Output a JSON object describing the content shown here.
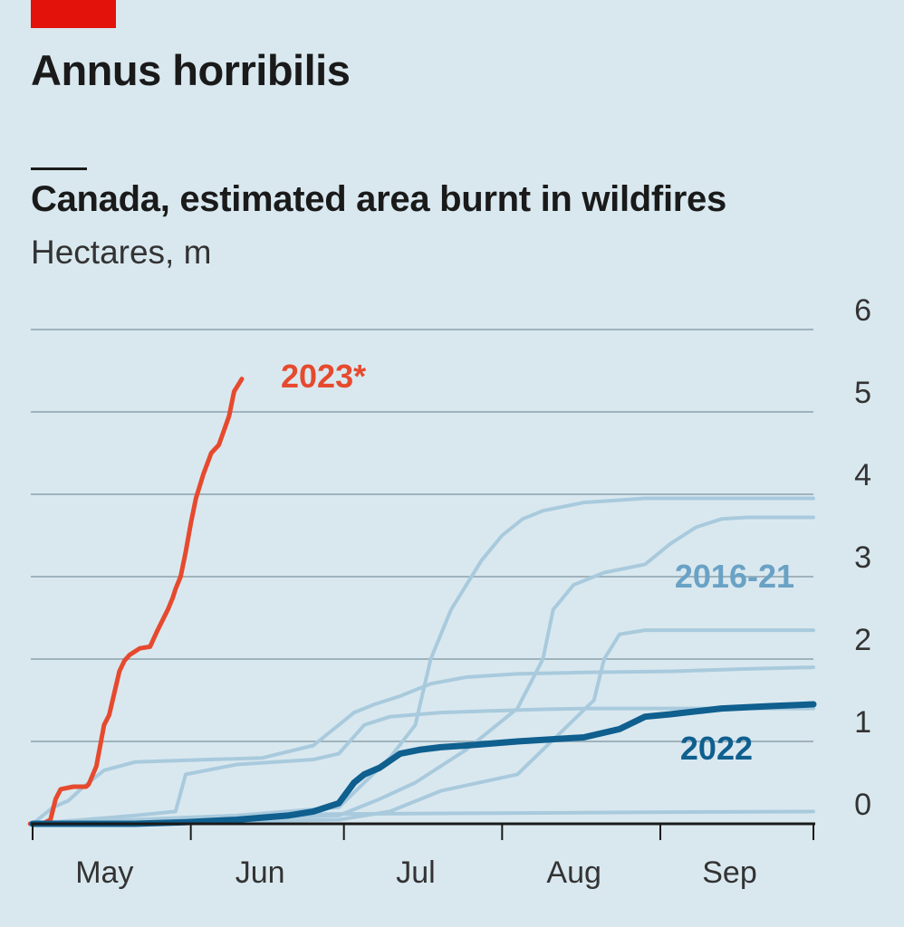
{
  "header": {
    "title": "Annus horribilis",
    "subtitle": "Canada, estimated area burnt in wildfires",
    "units": "Hectares, m"
  },
  "chart_data": {
    "type": "line",
    "title": "Canada, estimated area burnt in wildfires",
    "ylabel": "Hectares, m",
    "ylim": [
      0,
      6
    ],
    "yticks": [
      0,
      1,
      2,
      3,
      4,
      5,
      6
    ],
    "xlim": [
      0,
      153
    ],
    "months": [
      {
        "label": "May",
        "start": 0,
        "end": 31
      },
      {
        "label": "Jun",
        "start": 31,
        "end": 61
      },
      {
        "label": "Jul",
        "start": 61,
        "end": 92
      },
      {
        "label": "Aug",
        "start": 92,
        "end": 123
      },
      {
        "label": "Sep",
        "start": 123,
        "end": 153
      }
    ],
    "x_unit": "days since 1 May",
    "grid": true,
    "colors": {
      "y2023": "#e64a2e",
      "y2022": "#0f5f8f",
      "history": "#a9cadd",
      "history_label": "#6aa2c5"
    },
    "series": [
      {
        "name": "2023*",
        "color": "#e64a2e",
        "width": 5,
        "x": [
          -0.5,
          2.0,
          3.5,
          4.5,
          5.5,
          8.0,
          10.5,
          11.0,
          12.5,
          14.0,
          15.0,
          17.0,
          18.0,
          19.0,
          21.0,
          23.0,
          24.5,
          26.5,
          27.5,
          28.0,
          29.0,
          30.0,
          31.0,
          32.0,
          33.5,
          35.0,
          36.5,
          38.5,
          39.5,
          40.5,
          41.0
        ],
        "y": [
          0,
          0,
          0.05,
          0.3,
          0.42,
          0.45,
          0.45,
          0.48,
          0.7,
          1.2,
          1.32,
          1.85,
          1.98,
          2.05,
          2.13,
          2.15,
          2.35,
          2.6,
          2.75,
          2.85,
          3.0,
          3.3,
          3.65,
          3.95,
          4.25,
          4.5,
          4.6,
          4.95,
          5.25,
          5.35,
          5.4
        ]
      },
      {
        "name": "2016-21",
        "color": "#a9cadd",
        "width": 4,
        "x": [
          0,
          4,
          7,
          10,
          14,
          20,
          30,
          45,
          55,
          60,
          63,
          67,
          72,
          78,
          85,
          95,
          110,
          125,
          140,
          153
        ],
        "y": [
          0,
          0.2,
          0.28,
          0.45,
          0.65,
          0.75,
          0.77,
          0.8,
          0.95,
          1.2,
          1.35,
          1.45,
          1.55,
          1.7,
          1.78,
          1.82,
          1.84,
          1.85,
          1.88,
          1.9
        ]
      },
      {
        "name": "2016-21",
        "color": "#a9cadd",
        "width": 4,
        "x": [
          0,
          10,
          20,
          28,
          30,
          40,
          55,
          60,
          65,
          70,
          80,
          90,
          100,
          110,
          125,
          153
        ],
        "y": [
          0,
          0.05,
          0.1,
          0.15,
          0.6,
          0.72,
          0.78,
          0.85,
          1.2,
          1.3,
          1.35,
          1.37,
          1.39,
          1.4,
          1.4,
          1.4
        ]
      },
      {
        "name": "2016-21",
        "color": "#a9cadd",
        "width": 4,
        "x": [
          0,
          20,
          40,
          60,
          70,
          75,
          78,
          82,
          85,
          88,
          92,
          96,
          100,
          108,
          120,
          135,
          153
        ],
        "y": [
          0,
          0.05,
          0.1,
          0.2,
          0.8,
          1.2,
          2.0,
          2.6,
          2.9,
          3.2,
          3.5,
          3.7,
          3.8,
          3.9,
          3.95,
          3.95,
          3.95
        ]
      },
      {
        "name": "2016-21",
        "color": "#a9cadd",
        "width": 4,
        "x": [
          0,
          30,
          60,
          68,
          75,
          85,
          95,
          100,
          102,
          106,
          112,
          120,
          125,
          130,
          135,
          140,
          153
        ],
        "y": [
          0,
          0.05,
          0.1,
          0.3,
          0.5,
          0.9,
          1.4,
          2.0,
          2.6,
          2.9,
          3.05,
          3.15,
          3.4,
          3.6,
          3.7,
          3.72,
          3.72
        ]
      },
      {
        "name": "2016-21",
        "color": "#a9cadd",
        "width": 4,
        "x": [
          0,
          30,
          60,
          70,
          80,
          95,
          100,
          105,
          110,
          112,
          115,
          120,
          130,
          153
        ],
        "y": [
          0,
          0.02,
          0.05,
          0.15,
          0.4,
          0.6,
          0.9,
          1.2,
          1.5,
          2.0,
          2.3,
          2.35,
          2.35,
          2.35
        ]
      },
      {
        "name": "2016-21",
        "color": "#a9cadd",
        "width": 4,
        "x": [
          0,
          20,
          40,
          60,
          90,
          120,
          153
        ],
        "y": [
          0,
          0.05,
          0.1,
          0.12,
          0.13,
          0.14,
          0.15
        ]
      },
      {
        "name": "2022",
        "color": "#0f5f8f",
        "width": 7,
        "x": [
          0,
          20,
          30,
          40,
          50,
          55,
          60,
          63,
          65,
          68,
          72,
          76,
          80,
          85,
          95,
          108,
          115,
          120,
          125,
          135,
          145,
          153
        ],
        "y": [
          0,
          0,
          0.02,
          0.05,
          0.1,
          0.15,
          0.25,
          0.5,
          0.6,
          0.68,
          0.85,
          0.9,
          0.93,
          0.95,
          1.0,
          1.05,
          1.15,
          1.3,
          1.33,
          1.4,
          1.43,
          1.45
        ]
      }
    ],
    "labels": [
      {
        "text": "2023*",
        "color": "#e64a2e"
      },
      {
        "text": "2016-21",
        "color": "#6aa2c5"
      },
      {
        "text": "2022",
        "color": "#0f5f8f"
      }
    ]
  }
}
